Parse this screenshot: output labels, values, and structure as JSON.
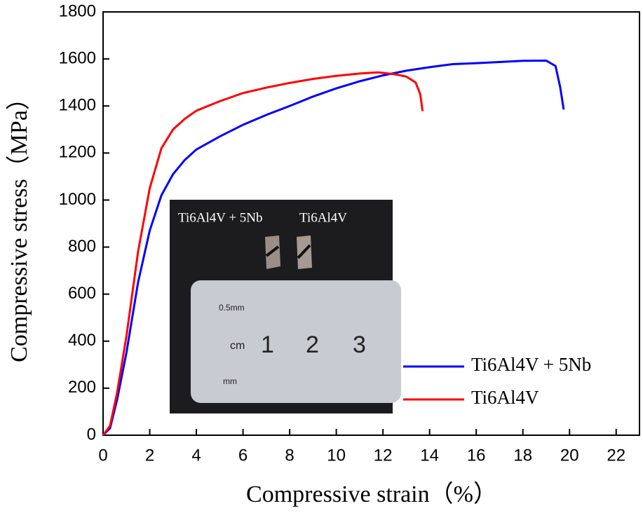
{
  "chart_data": {
    "type": "line",
    "xlabel": "Compressive strain（%）",
    "ylabel": "Compressive stress（MPa）",
    "xlim": [
      0,
      23
    ],
    "ylim": [
      0,
      1800
    ],
    "xticks": [
      0,
      2,
      4,
      6,
      8,
      10,
      12,
      14,
      16,
      18,
      20,
      22
    ],
    "yticks": [
      0,
      200,
      400,
      600,
      800,
      1000,
      1200,
      1400,
      1600,
      1800
    ],
    "series": [
      {
        "name": "Ti6Al4V + 5Nb",
        "color": "#0000ff",
        "x": [
          0,
          0.3,
          0.6,
          1,
          1.5,
          2,
          2.5,
          3,
          3.5,
          4,
          5,
          6,
          7,
          8,
          9,
          10,
          11,
          12,
          13,
          14,
          15,
          16,
          17,
          18,
          19,
          19.4,
          19.6,
          19.75
        ],
        "values": [
          0,
          30,
          150,
          350,
          650,
          870,
          1020,
          1110,
          1170,
          1215,
          1270,
          1320,
          1362,
          1400,
          1440,
          1475,
          1505,
          1530,
          1550,
          1565,
          1578,
          1582,
          1587,
          1592,
          1593,
          1570,
          1480,
          1385
        ]
      },
      {
        "name": "Ti6Al4V",
        "color": "#ff0000",
        "x": [
          0,
          0.3,
          0.6,
          1,
          1.5,
          2,
          2.5,
          3,
          3.5,
          4,
          5,
          6,
          7,
          8,
          9,
          10,
          11,
          11.8,
          12.5,
          13,
          13.4,
          13.6,
          13.7
        ],
        "values": [
          0,
          40,
          180,
          420,
          780,
          1050,
          1220,
          1300,
          1345,
          1380,
          1420,
          1455,
          1478,
          1498,
          1515,
          1528,
          1538,
          1543,
          1535,
          1525,
          1500,
          1450,
          1378
        ]
      }
    ],
    "inset": {
      "labels": [
        "Ti6Al4V + 5Nb",
        "Ti6Al4V"
      ],
      "ruler": [
        "0.5mm",
        "cm",
        "1",
        "2",
        "3",
        "mm"
      ]
    }
  }
}
